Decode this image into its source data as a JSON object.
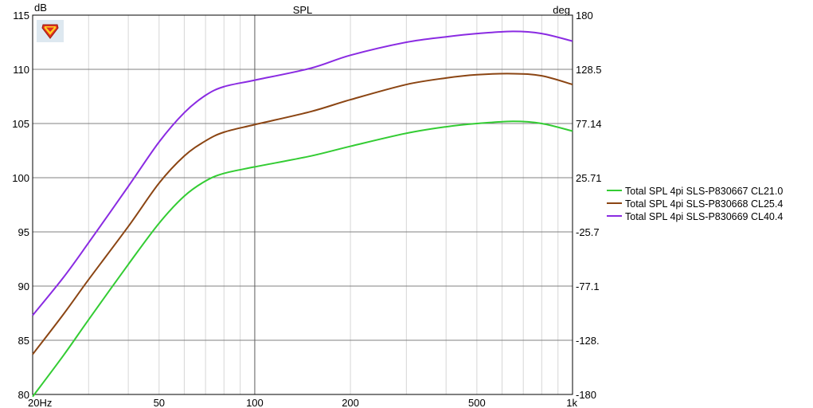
{
  "logo_icon": "shield-logo-icon",
  "chart_data": {
    "type": "line",
    "title": "SPL",
    "ylabel": "dB",
    "y2label": "deg",
    "xscale": "log",
    "xlim": [
      20,
      1000
    ],
    "ylim": [
      80,
      115
    ],
    "y2lim": [
      -180,
      180
    ],
    "grid": true,
    "legend_position": "right",
    "x_ticks": [
      {
        "value": 20,
        "label": "20Hz"
      },
      {
        "value": 50,
        "label": "50"
      },
      {
        "value": 100,
        "label": "100"
      },
      {
        "value": 200,
        "label": "200"
      },
      {
        "value": 500,
        "label": "500"
      },
      {
        "value": 1000,
        "label": "1k"
      }
    ],
    "y_ticks": [
      {
        "value": 80,
        "label": "80"
      },
      {
        "value": 85,
        "label": "85"
      },
      {
        "value": 90,
        "label": "90"
      },
      {
        "value": 95,
        "label": "95"
      },
      {
        "value": 100,
        "label": "100"
      },
      {
        "value": 105,
        "label": "105"
      },
      {
        "value": 110,
        "label": "110"
      },
      {
        "value": 115,
        "label": "115"
      }
    ],
    "y2_ticks": [
      {
        "value": 180,
        "label": "180"
      },
      {
        "value": 128.57,
        "label": "128.5"
      },
      {
        "value": 77.14,
        "label": "77.14"
      },
      {
        "value": 25.71,
        "label": "25.71"
      },
      {
        "value": -25.71,
        "label": "-25.7"
      },
      {
        "value": -77.14,
        "label": "-77.1"
      },
      {
        "value": -128.57,
        "label": "-128."
      },
      {
        "value": -180,
        "label": "-180"
      }
    ],
    "x": [
      20,
      25,
      30,
      40,
      50,
      60,
      70,
      80,
      100,
      150,
      200,
      300,
      400,
      500,
      650,
      800,
      1000
    ],
    "series": [
      {
        "name": "Total SPL 4pi SLS-P830667 CL21.0",
        "color": "#33cc33",
        "values": [
          79.8,
          83.6,
          86.9,
          92.0,
          95.8,
          98.3,
          99.7,
          100.4,
          101.0,
          102.0,
          102.9,
          104.1,
          104.7,
          105.0,
          105.2,
          105.0,
          104.3
        ]
      },
      {
        "name": "Total SPL 4pi SLS-P830668 CL25.4",
        "color": "#8b4513",
        "values": [
          83.7,
          87.4,
          90.6,
          95.5,
          99.5,
          102.0,
          103.4,
          104.2,
          104.9,
          106.1,
          107.2,
          108.6,
          109.2,
          109.5,
          109.6,
          109.4,
          108.6
        ]
      },
      {
        "name": "Total SPL 4pi SLS-P830669 CL40.4",
        "color": "#8a2be2",
        "values": [
          87.3,
          90.8,
          94.0,
          99.2,
          103.3,
          106.0,
          107.6,
          108.4,
          109.0,
          110.1,
          111.3,
          112.5,
          113.0,
          113.3,
          113.5,
          113.3,
          112.6
        ]
      }
    ]
  }
}
